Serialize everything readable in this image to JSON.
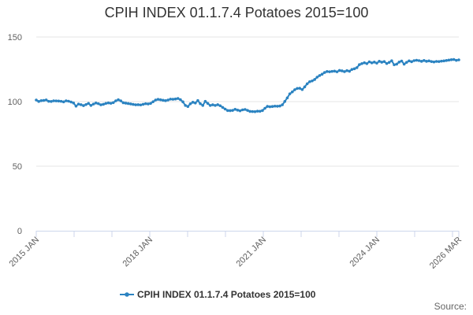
{
  "chart_data": {
    "type": "line",
    "title": "CPIH INDEX 01.1.7.4 Potatoes 2015=100",
    "xlabel": "",
    "ylabel": "",
    "ylim": [
      0,
      150
    ],
    "y_ticks": [
      "0",
      "50",
      "100",
      "150"
    ],
    "x_tick_labels": [
      "2015 JAN",
      "2018 JAN",
      "2021 JAN",
      "2024 JAN",
      "2026 MAR"
    ],
    "grid": "horizontal",
    "legend_position": "bottom",
    "x_start": "2015-01",
    "x_end": "2026-03",
    "series": [
      {
        "name": "CPIH INDEX 01.1.7.4 Potatoes 2015=100",
        "color": "#2b83c1",
        "values": [
          101.2,
          100.1,
          100.7,
          100.9,
          101.3,
          100.2,
          100.1,
          100.6,
          100.5,
          100.4,
          100.2,
          99.8,
          100.6,
          100.3,
          99.7,
          98.9,
          96.5,
          98.1,
          97.6,
          96.9,
          97.7,
          98.6,
          97.0,
          98.1,
          98.9,
          98.4,
          97.5,
          97.9,
          98.6,
          99.0,
          98.7,
          99.2,
          100.6,
          101.4,
          100.6,
          99.1,
          98.8,
          98.5,
          98.2,
          97.8,
          97.5,
          97.6,
          97.4,
          97.9,
          98.4,
          98.2,
          98.6,
          99.9,
          101.2,
          101.7,
          101.4,
          101.0,
          100.7,
          101.2,
          101.9,
          101.8,
          102.0,
          102.4,
          101.5,
          99.8,
          97.0,
          96.2,
          98.3,
          99.5,
          98.9,
          100.8,
          98.4,
          97.0,
          100.2,
          98.6,
          97.0,
          97.5,
          97.0,
          97.6,
          96.8,
          95.5,
          94.2,
          93.1,
          93.0,
          93.2,
          94.0,
          93.4,
          92.9,
          93.6,
          93.9,
          93.2,
          92.4,
          92.3,
          92.2,
          92.6,
          92.5,
          93.1,
          94.8,
          96.3,
          96.0,
          96.2,
          96.5,
          96.4,
          96.6,
          97.5,
          100.1,
          102.9,
          106.0,
          107.5,
          109.2,
          110.2,
          110.3,
          109.3,
          111.4,
          113.8,
          115.4,
          116.0,
          117.1,
          118.9,
          120.2,
          121.2,
          122.5,
          123.3,
          123.1,
          123.4,
          123.6,
          123.1,
          124.1,
          123.8,
          123.2,
          124.0,
          123.5,
          124.9,
          125.4,
          126.3,
          128.6,
          129.4,
          130.1,
          129.4,
          130.8,
          130.0,
          130.6,
          129.8,
          131.2,
          130.5,
          131.0,
          129.5,
          130.4,
          131.6,
          128.5,
          129.0,
          130.6,
          131.4,
          129.0,
          130.4,
          131.5,
          130.9,
          131.7,
          132.0,
          131.7,
          131.2,
          131.8,
          131.2,
          131.5,
          131.0,
          130.7,
          131.1,
          131.0,
          131.3,
          131.5,
          131.8,
          132.1,
          132.4,
          132.6,
          131.9,
          132.3
        ]
      }
    ]
  },
  "source_label": "Source:"
}
